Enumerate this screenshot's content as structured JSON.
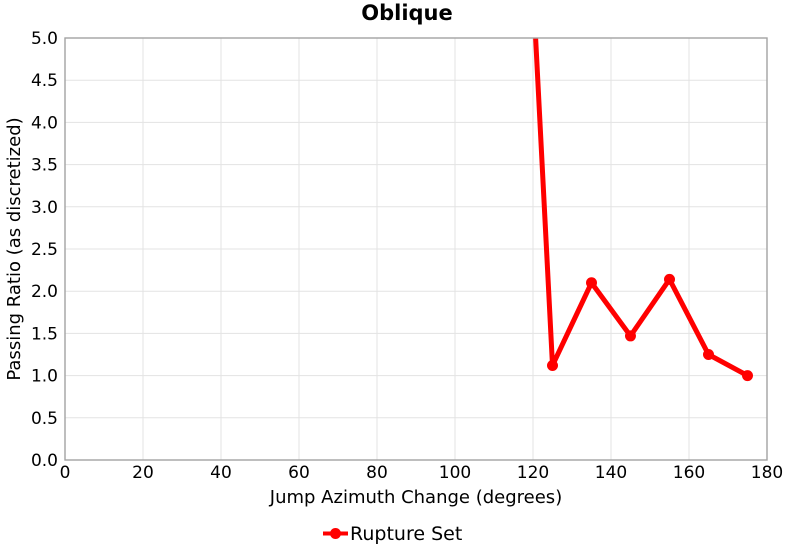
{
  "title": "Oblique",
  "axes": {
    "x_label": "Jump Azimuth Change (degrees)",
    "y_label": "Passing Ratio (as discretized)"
  },
  "legend": {
    "label": "Rupture Set",
    "position": "bottom-center",
    "marker": "line-with-filled-circle"
  },
  "colors": {
    "series": "#FF0000",
    "grid": "#E3E3E3",
    "axis_border": "#A3A3A3",
    "text": "#000000",
    "background": "#FFFFFF"
  },
  "chart_data": {
    "type": "line",
    "title": "Oblique",
    "xlabel": "Jump Azimuth Change (degrees)",
    "ylabel": "Passing Ratio (as discretized)",
    "xlim": [
      0,
      180
    ],
    "ylim": [
      0,
      5
    ],
    "xticks": [
      0,
      20,
      40,
      60,
      80,
      100,
      120,
      140,
      160,
      180
    ],
    "yticks": [
      0.0,
      0.5,
      1.0,
      1.5,
      2.0,
      2.5,
      3.0,
      3.5,
      4.0,
      4.5,
      5.0
    ],
    "grid": true,
    "legend_position": "bottom",
    "series": [
      {
        "name": "Rupture Set",
        "color": "#FF0000",
        "points": [
          [
            125,
            1.12
          ],
          [
            135,
            2.1
          ],
          [
            145,
            1.47
          ],
          [
            155,
            2.14
          ],
          [
            165,
            1.25
          ],
          [
            175,
            1.0
          ]
        ],
        "entry_segment_from": [
          120,
          5.6
        ],
        "note": "line enters the plot from above the y-axis maximum (clipped) near x=120.6"
      }
    ]
  }
}
